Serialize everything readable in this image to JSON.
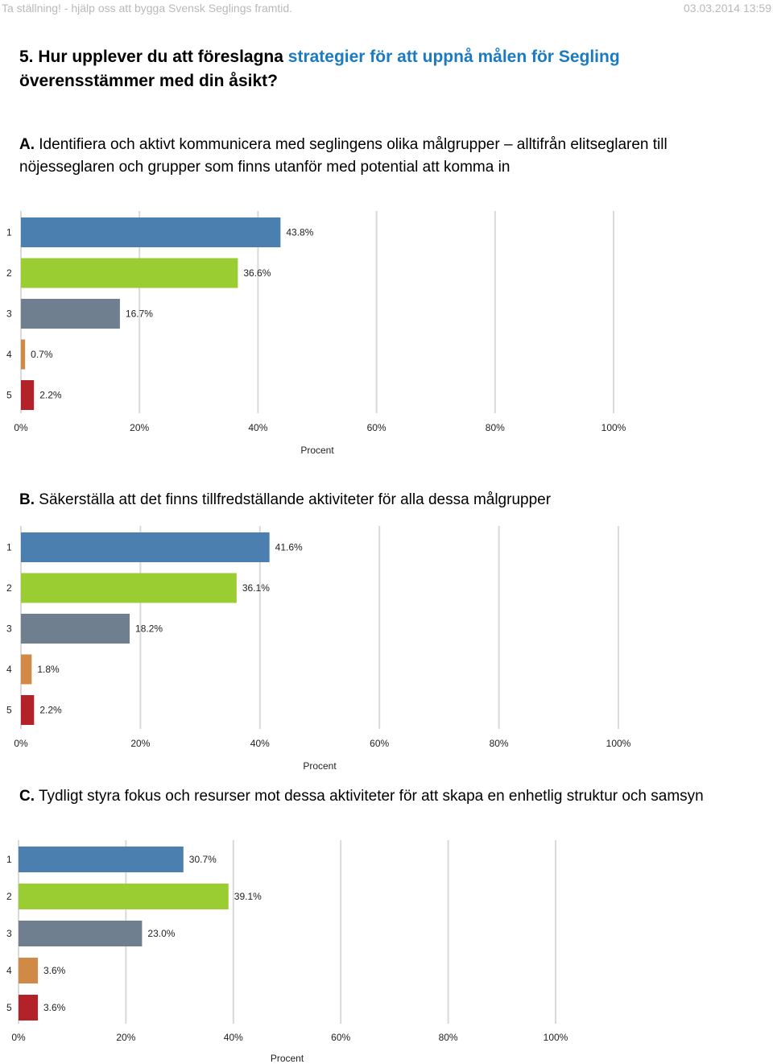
{
  "header": {
    "left": "Ta ställning! - hjälp oss att bygga Svensk Seglings framtid.",
    "right": "03.03.2014 13:59"
  },
  "question": {
    "number": "5.",
    "text_before": "Hur upplever du att föreslagna",
    "text_highlight": "strategier för att uppnå målen för Segling",
    "text_after": "överensstämmer med din åsikt?"
  },
  "colors": {
    "highlight": "#1a7ac2",
    "bar_1": "#4a7fb0",
    "bar_2": "#9acd32",
    "bar_3": "#707f8f",
    "bar_4": "#d08a45",
    "bar_5": "#b22228",
    "grid": "#d9d9d9"
  },
  "chart_data": [
    {
      "type": "bar",
      "letter": "A.",
      "title": "Identifiera och aktivt kommunicera med seglingens olika målgrupper – alltifrån elitseglaren till nöjesseglaren och grupper som finns utanför med potential att komma in",
      "categories": [
        "1",
        "2",
        "3",
        "4",
        "5"
      ],
      "values": [
        43.8,
        36.6,
        16.7,
        0.7,
        2.2
      ],
      "labels": [
        "43.8%",
        "36.6%",
        "16.7%",
        "0.7%",
        "2.2%"
      ],
      "xlim": [
        0,
        100
      ],
      "xticks": [
        "0%",
        "20%",
        "40%",
        "60%",
        "80%",
        "100%"
      ],
      "xlabel": "Procent",
      "grid": true
    },
    {
      "type": "bar",
      "letter": "B.",
      "title": "Säkerställa att det finns tillfredställande aktiviteter för alla dessa målgrupper",
      "categories": [
        "1",
        "2",
        "3",
        "4",
        "5"
      ],
      "values": [
        41.6,
        36.1,
        18.2,
        1.8,
        2.2
      ],
      "labels": [
        "41.6%",
        "36.1%",
        "18.2%",
        "1.8%",
        "2.2%"
      ],
      "xlim": [
        0,
        100
      ],
      "xticks": [
        "0%",
        "20%",
        "40%",
        "60%",
        "80%",
        "100%"
      ],
      "xlabel": "Procent",
      "grid": true
    },
    {
      "type": "bar",
      "letter": "C.",
      "title": "Tydligt styra fokus och resurser mot dessa aktiviteter för att skapa en enhetlig struktur och samsyn",
      "categories": [
        "1",
        "2",
        "3",
        "4",
        "5"
      ],
      "values": [
        30.7,
        39.1,
        23.0,
        3.6,
        3.6
      ],
      "labels": [
        "30.7%",
        "39.1%",
        "23.0%",
        "3.6%",
        "3.6%"
      ],
      "xlim": [
        0,
        100
      ],
      "xticks": [
        "0%",
        "20%",
        "40%",
        "60%",
        "80%",
        "100%"
      ],
      "xlabel": "Procent",
      "grid": true
    }
  ]
}
